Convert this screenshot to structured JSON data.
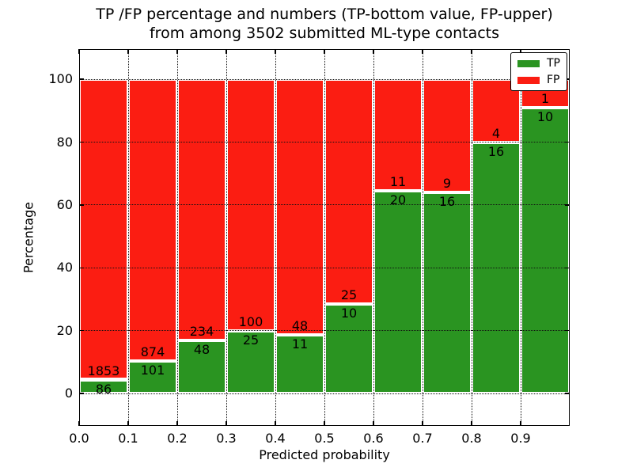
{
  "title_lines": [
    "TP /FP percentage and numbers (TP-bottom value, FP-upper)",
    "from among 3502 submitted ML-type contacts"
  ],
  "chart_data": {
    "type": "bar",
    "subtype": "stacked-percentage",
    "title": "TP /FP percentage and numbers (TP-bottom value, FP-upper)\nfrom among 3502 submitted ML-type contacts",
    "xlabel": "Predicted probability",
    "ylabel": "Percentage",
    "total_contacts": 3502,
    "x_bins": [
      "0.0-0.1",
      "0.1-0.2",
      "0.2-0.3",
      "0.3-0.4",
      "0.4-0.5",
      "0.5-0.6",
      "0.6-0.7",
      "0.7-0.8",
      "0.8-0.9",
      "0.9-1.0"
    ],
    "x_tick_labels": [
      "0.0",
      "0.1",
      "0.2",
      "0.3",
      "0.4",
      "0.5",
      "0.6",
      "0.7",
      "0.8",
      "0.9"
    ],
    "y_ticks": [
      0,
      20,
      40,
      60,
      80,
      100
    ],
    "y_tick_labels": [
      "0",
      "20",
      "40",
      "60",
      "80",
      "100"
    ],
    "xlim": [
      0.0,
      1.0
    ],
    "ylim": [
      -10.3,
      109.6
    ],
    "grid": "dotted",
    "legend_position": "upper-right",
    "note": "each bar normalized to 100%; green TP segment height = TP/(TP+FP)*100, red FP fills to 100",
    "series": [
      {
        "name": "TP",
        "color": "#2a9421",
        "values": [
          86,
          101,
          48,
          25,
          11,
          10,
          20,
          16,
          16,
          10
        ]
      },
      {
        "name": "FP",
        "color": "#fb1d12",
        "values": [
          1853,
          874,
          234,
          100,
          48,
          25,
          11,
          9,
          4,
          1
        ]
      }
    ]
  }
}
